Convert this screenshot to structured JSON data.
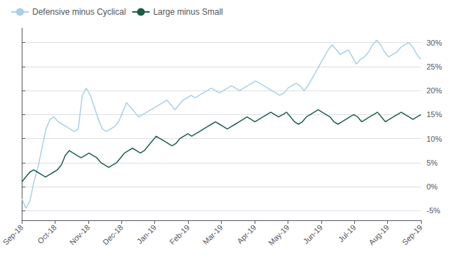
{
  "chart_data": {
    "type": "line",
    "legend": "upper left",
    "grid": true,
    "xlim": [
      0,
      12
    ],
    "xticks": [
      {
        "value": 0,
        "label": "Sep-18"
      },
      {
        "value": 1,
        "label": "Oct-18"
      },
      {
        "value": 2,
        "label": "Nov-18"
      },
      {
        "value": 3,
        "label": "Dec-18"
      },
      {
        "value": 4,
        "label": "Jan-19"
      },
      {
        "value": 5,
        "label": "Feb-19"
      },
      {
        "value": 6,
        "label": "Mar-19"
      },
      {
        "value": 7,
        "label": "Apr-19"
      },
      {
        "value": 8,
        "label": "May-19"
      },
      {
        "value": 9,
        "label": "Jun-19"
      },
      {
        "value": 10,
        "label": "Jul-19"
      },
      {
        "value": 11,
        "label": "Aug-19"
      },
      {
        "value": 12,
        "label": "Sep-19"
      }
    ],
    "ylim": [
      -7,
      33
    ],
    "yticks": [
      {
        "value": -5,
        "label": "-5%"
      },
      {
        "value": 0,
        "label": "0%"
      },
      {
        "value": 5,
        "label": "5%"
      },
      {
        "value": 10,
        "label": "10%"
      },
      {
        "value": 15,
        "label": "15%"
      },
      {
        "value": 20,
        "label": "20%"
      },
      {
        "value": 25,
        "label": "25%"
      },
      {
        "value": 30,
        "label": "30%"
      }
    ],
    "series": [
      {
        "name": "Defensive minus Cyclical",
        "color": "#a8d0e8",
        "x": [
          0,
          0.1212,
          0.2424,
          0.3636,
          0.4848,
          0.6061,
          0.7273,
          0.8485,
          0.9697,
          1.0909,
          1.2121,
          1.3333,
          1.4545,
          1.5758,
          1.697,
          1.8182,
          1.9394,
          2.0606,
          2.1818,
          2.303,
          2.4242,
          2.5455,
          2.6667,
          2.7879,
          2.9091,
          3.0303,
          3.1515,
          3.2727,
          3.3939,
          3.5152,
          3.6364,
          3.7576,
          3.8788,
          4,
          4.1212,
          4.2424,
          4.3636,
          4.4848,
          4.6061,
          4.7273,
          4.8485,
          4.9697,
          5.0909,
          5.2121,
          5.3333,
          5.4545,
          5.5758,
          5.697,
          5.8182,
          5.9394,
          6.0606,
          6.1818,
          6.303,
          6.4242,
          6.5455,
          6.6667,
          6.7879,
          6.9091,
          7.0303,
          7.1515,
          7.2727,
          7.3939,
          7.5152,
          7.6364,
          7.7576,
          7.8788,
          8,
          8.1212,
          8.2424,
          8.3636,
          8.4848,
          8.6061,
          8.7273,
          8.8485,
          8.9697,
          9.0909,
          9.2121,
          9.3333,
          9.4545,
          9.5758,
          9.697,
          9.8182,
          9.9394,
          10.0606,
          10.1818,
          10.303,
          10.4242,
          10.5455,
          10.6667,
          10.7879,
          10.9091,
          11.0303,
          11.1515,
          11.2727,
          11.3939,
          11.5152,
          11.6364,
          11.7576,
          11.8788,
          12
        ],
        "values": [
          -2.5,
          -4.5,
          -3.0,
          1.0,
          4.0,
          8.0,
          12.0,
          14.0,
          14.5,
          13.5,
          13.0,
          12.5,
          12.0,
          11.5,
          12.0,
          19.0,
          20.5,
          19.0,
          16.5,
          14.0,
          12.0,
          11.5,
          12.0,
          12.5,
          13.5,
          15.5,
          17.5,
          16.5,
          15.5,
          14.5,
          15.0,
          15.5,
          16.0,
          16.5,
          17.0,
          17.5,
          18.0,
          17.0,
          16.0,
          17.0,
          18.0,
          18.5,
          19.0,
          18.5,
          19.0,
          19.5,
          20.0,
          20.5,
          20.0,
          19.5,
          20.0,
          20.5,
          21.0,
          20.5,
          20.0,
          20.5,
          21.0,
          21.5,
          22.0,
          21.5,
          21.0,
          20.5,
          20.0,
          19.5,
          19.0,
          19.5,
          20.5,
          21.0,
          21.5,
          21.0,
          20.0,
          21.0,
          22.5,
          24.0,
          25.5,
          27.0,
          28.5,
          29.5,
          28.5,
          27.5,
          28.0,
          28.5,
          27.0,
          25.5,
          26.5,
          27.0,
          28.0,
          29.5,
          30.5,
          29.5,
          28.0,
          27.0,
          27.5,
          28.0,
          29.0,
          29.5,
          30.0,
          29.0,
          27.5,
          26.5
        ]
      },
      {
        "name": "Large minus Small",
        "color": "#1a5e47",
        "x": [
          0,
          0.1188,
          0.2376,
          0.3564,
          0.4752,
          0.5941,
          0.7129,
          0.8317,
          0.9505,
          1.0693,
          1.1881,
          1.3069,
          1.4257,
          1.5446,
          1.6634,
          1.7822,
          1.901,
          2.0198,
          2.1386,
          2.2574,
          2.3762,
          2.495,
          2.6139,
          2.7327,
          2.8515,
          2.9703,
          3.0891,
          3.2079,
          3.3267,
          3.4455,
          3.5644,
          3.6832,
          3.802,
          3.9208,
          4.0396,
          4.1584,
          4.2772,
          4.396,
          4.5149,
          4.6337,
          4.7525,
          4.8713,
          4.9901,
          5.1089,
          5.2277,
          5.3465,
          5.4653,
          5.5842,
          5.703,
          5.8218,
          5.9406,
          6.0594,
          6.1782,
          6.297,
          6.4158,
          6.5347,
          6.6535,
          6.7723,
          6.8911,
          7.0099,
          7.1287,
          7.2475,
          7.3663,
          7.4851,
          7.604,
          7.7228,
          7.8416,
          7.9604,
          8.0792,
          8.198,
          8.3168,
          8.4356,
          8.5545,
          8.6733,
          8.7921,
          8.9109,
          9.0297,
          9.1485,
          9.2673,
          9.3861,
          9.505,
          9.6238,
          9.7426,
          9.8614,
          9.9802,
          10.099,
          10.2178,
          10.3366,
          10.4554,
          10.5743,
          10.6931,
          10.8119,
          10.9307,
          11.0495,
          11.1683,
          11.2871,
          11.4059,
          11.5248,
          11.6436,
          11.7624,
          11.8812,
          12
        ],
        "values": [
          1.0,
          2.0,
          3.0,
          3.5,
          3.0,
          2.5,
          2.0,
          2.5,
          3.0,
          3.5,
          4.5,
          6.5,
          7.5,
          7.0,
          6.5,
          6.0,
          6.5,
          7.0,
          6.5,
          6.0,
          5.0,
          4.5,
          4.0,
          4.5,
          5.0,
          6.0,
          7.0,
          7.5,
          8.0,
          7.5,
          7.0,
          7.5,
          8.5,
          9.5,
          10.5,
          10.0,
          9.5,
          9.0,
          8.5,
          9.0,
          10.0,
          10.5,
          11.0,
          10.5,
          11.0,
          11.5,
          12.0,
          12.5,
          13.0,
          13.5,
          13.0,
          12.5,
          12.0,
          12.5,
          13.0,
          13.5,
          14.0,
          14.5,
          14.0,
          13.5,
          14.0,
          14.5,
          15.0,
          15.5,
          15.0,
          14.5,
          15.0,
          15.5,
          14.5,
          13.5,
          13.0,
          13.5,
          14.5,
          15.0,
          15.5,
          16.0,
          15.5,
          15.0,
          14.5,
          13.5,
          13.0,
          13.5,
          14.0,
          14.5,
          15.0,
          14.5,
          13.5,
          14.0,
          14.5,
          15.0,
          15.5,
          14.5,
          13.5,
          14.0,
          14.5,
          15.0,
          15.5,
          15.0,
          14.5,
          14.0,
          14.5,
          15.0
        ]
      }
    ]
  }
}
